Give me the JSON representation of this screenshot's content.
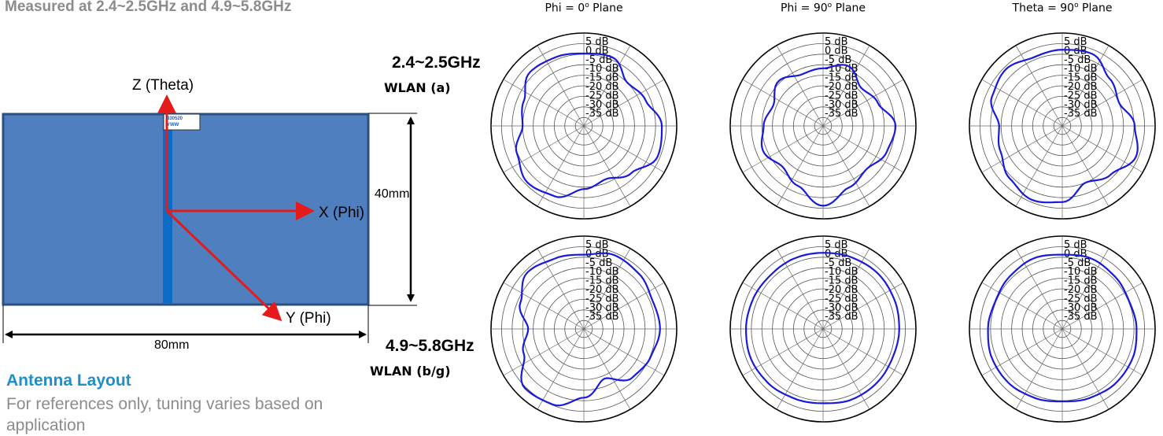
{
  "header": {
    "text": "Measured at 2.4~2.5GHz and 4.9~5.8GHz"
  },
  "layout": {
    "title": "Antenna Layout",
    "note": "For references only, tuning varies based on application",
    "axes": {
      "z": "Z (Theta)",
      "x": "X (Phi)",
      "y": "Y (Phi)"
    },
    "dimensions": {
      "width": "80mm",
      "height": "40mm"
    },
    "chip_tag": [
      "830520",
      "YWW"
    ],
    "colors": {
      "board": "#4f7fbe",
      "board_border": "#2b4f80",
      "feed": "#0b6cc7",
      "axis": "#e41b1b"
    }
  },
  "rows": [
    {
      "freq": "2.4~2.5GHz",
      "label": "WLAN (a)"
    },
    {
      "freq": "4.9~5.8GHz",
      "label": "WLAN (b/g)"
    }
  ],
  "planes": [
    {
      "prefix": "Phi = 0",
      "suffix": " Plane"
    },
    {
      "prefix": "Phi = 90",
      "suffix": " Plane"
    },
    {
      "prefix": "Theta = 90",
      "suffix": " Plane"
    }
  ],
  "degree_symbol": "o",
  "scale_labels": [
    "5 dB",
    "0 dB",
    "-5 dB",
    "-10 dB",
    "-15 dB",
    "-20 dB",
    "-25 dB",
    "-30 dB",
    "-35 dB"
  ],
  "pattern_color": "#1a1adb",
  "patterns": [
    {
      "row": 0,
      "col": 0,
      "r": [
        0.78,
        0.8,
        0.66,
        0.72,
        0.84,
        0.86,
        0.72,
        0.62,
        0.68,
        0.82,
        0.86,
        0.78,
        0.66,
        0.7,
        0.82,
        0.8
      ]
    },
    {
      "row": 0,
      "col": 1,
      "r": [
        0.62,
        0.7,
        0.58,
        0.64,
        0.78,
        0.74,
        0.66,
        0.72,
        0.86,
        0.7,
        0.62,
        0.7,
        0.64,
        0.58,
        0.68,
        0.6
      ]
    },
    {
      "row": 0,
      "col": 2,
      "r": [
        0.82,
        0.84,
        0.72,
        0.66,
        0.78,
        0.86,
        0.74,
        0.66,
        0.82,
        0.86,
        0.8,
        0.72,
        0.68,
        0.82,
        0.86,
        0.8
      ]
    },
    {
      "row": 1,
      "col": 0,
      "r": [
        0.8,
        0.86,
        0.84,
        0.8,
        0.82,
        0.78,
        0.74,
        0.58,
        0.74,
        0.88,
        0.9,
        0.7,
        0.6,
        0.74,
        0.86,
        0.82
      ]
    },
    {
      "row": 1,
      "col": 1,
      "r": [
        0.82,
        0.83,
        0.84,
        0.83,
        0.82,
        0.81,
        0.82,
        0.82,
        0.8,
        0.81,
        0.83,
        0.84,
        0.83,
        0.82,
        0.81,
        0.82
      ]
    },
    {
      "row": 1,
      "col": 2,
      "r": [
        0.8,
        0.82,
        0.8,
        0.78,
        0.8,
        0.82,
        0.82,
        0.8,
        0.78,
        0.8,
        0.82,
        0.82,
        0.8,
        0.78,
        0.8,
        0.82
      ]
    }
  ]
}
